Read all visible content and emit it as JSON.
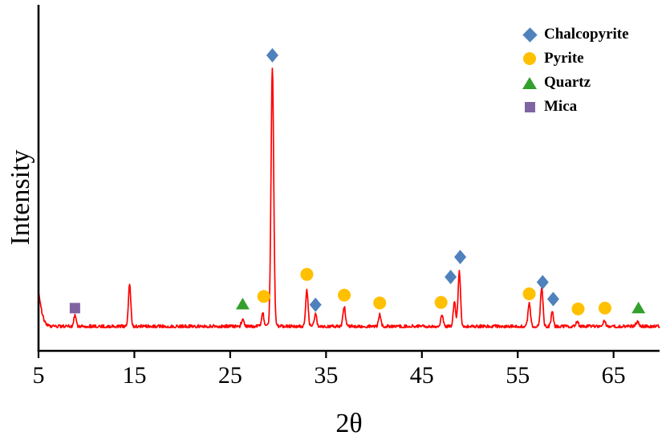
{
  "chart_data": {
    "type": "line",
    "title": "",
    "xlabel": "2θ",
    "ylabel": "Intensity",
    "x_ticks": [
      5,
      15,
      25,
      35,
      45,
      55,
      65
    ],
    "xlim": [
      5,
      69.8
    ],
    "ylim": [
      0,
      1.1
    ],
    "y_ticks": [],
    "grid": false,
    "line_color": "#FF0000",
    "axis_color": "#000000",
    "legend_position": "top-right",
    "peaks": [
      {
        "two_theta": 4.6,
        "height": 0.18,
        "width": 0.5,
        "mineral": ""
      },
      {
        "two_theta": 8.8,
        "height": 0.045,
        "width": 0.12,
        "mineral": "Mica"
      },
      {
        "two_theta": 14.5,
        "height": 0.165,
        "width": 0.12,
        "mineral": ""
      },
      {
        "two_theta": 26.3,
        "height": 0.032,
        "width": 0.13,
        "mineral": "Quartz"
      },
      {
        "two_theta": 28.4,
        "height": 0.05,
        "width": 0.12,
        "mineral": "Pyrite"
      },
      {
        "two_theta": 29.4,
        "height": 1.0,
        "width": 0.14,
        "mineral": "Chalcopyrite"
      },
      {
        "two_theta": 33.0,
        "height": 0.14,
        "width": 0.13,
        "mineral": "Pyrite"
      },
      {
        "two_theta": 33.9,
        "height": 0.05,
        "width": 0.12,
        "mineral": "Chalcopyrite"
      },
      {
        "two_theta": 36.9,
        "height": 0.075,
        "width": 0.13,
        "mineral": "Pyrite"
      },
      {
        "two_theta": 40.6,
        "height": 0.045,
        "width": 0.13,
        "mineral": "Pyrite"
      },
      {
        "two_theta": 47.1,
        "height": 0.045,
        "width": 0.13,
        "mineral": "Pyrite"
      },
      {
        "two_theta": 48.4,
        "height": 0.1,
        "width": 0.12,
        "mineral": "Chalcopyrite"
      },
      {
        "two_theta": 48.9,
        "height": 0.21,
        "width": 0.13,
        "mineral": "Chalcopyrite"
      },
      {
        "two_theta": 56.2,
        "height": 0.09,
        "width": 0.13,
        "mineral": "Pyrite"
      },
      {
        "two_theta": 57.5,
        "height": 0.15,
        "width": 0.13,
        "mineral": "Chalcopyrite"
      },
      {
        "two_theta": 58.6,
        "height": 0.055,
        "width": 0.12,
        "mineral": "Chalcopyrite"
      },
      {
        "two_theta": 61.2,
        "height": 0.018,
        "width": 0.15,
        "mineral": "Pyrite"
      },
      {
        "two_theta": 64.0,
        "height": 0.02,
        "width": 0.15,
        "mineral": "Pyrite"
      },
      {
        "two_theta": 67.5,
        "height": 0.02,
        "width": 0.15,
        "mineral": "Quartz"
      }
    ],
    "markers": [
      {
        "mineral": "Mica",
        "x": 8.8,
        "y": 0.075
      },
      {
        "mineral": "Quartz",
        "x": 26.3,
        "y": 0.09
      },
      {
        "mineral": "Pyrite",
        "x": 28.5,
        "y": 0.12
      },
      {
        "mineral": "Chalcopyrite",
        "x": 29.4,
        "y": 1.05
      },
      {
        "mineral": "Pyrite",
        "x": 33.0,
        "y": 0.205
      },
      {
        "mineral": "Chalcopyrite",
        "x": 33.9,
        "y": 0.088
      },
      {
        "mineral": "Pyrite",
        "x": 36.9,
        "y": 0.125
      },
      {
        "mineral": "Pyrite",
        "x": 40.6,
        "y": 0.095
      },
      {
        "mineral": "Pyrite",
        "x": 47.0,
        "y": 0.097
      },
      {
        "mineral": "Chalcopyrite",
        "x": 48.0,
        "y": 0.195
      },
      {
        "mineral": "Chalcopyrite",
        "x": 49.0,
        "y": 0.272
      },
      {
        "mineral": "Pyrite",
        "x": 56.2,
        "y": 0.13
      },
      {
        "mineral": "Chalcopyrite",
        "x": 57.6,
        "y": 0.175
      },
      {
        "mineral": "Chalcopyrite",
        "x": 58.7,
        "y": 0.11
      },
      {
        "mineral": "Pyrite",
        "x": 61.3,
        "y": 0.072
      },
      {
        "mineral": "Pyrite",
        "x": 64.1,
        "y": 0.075
      },
      {
        "mineral": "Quartz",
        "x": 67.6,
        "y": 0.075
      }
    ],
    "legend": {
      "items": [
        {
          "label": "Chalcopyrite",
          "shape": "diamond",
          "color": "#4F81BD"
        },
        {
          "label": "Pyrite",
          "shape": "circle",
          "color": "#FFC000"
        },
        {
          "label": "Quartz",
          "shape": "triangle",
          "color": "#33A02C"
        },
        {
          "label": "Mica",
          "shape": "square",
          "color": "#8064A2"
        }
      ]
    }
  }
}
